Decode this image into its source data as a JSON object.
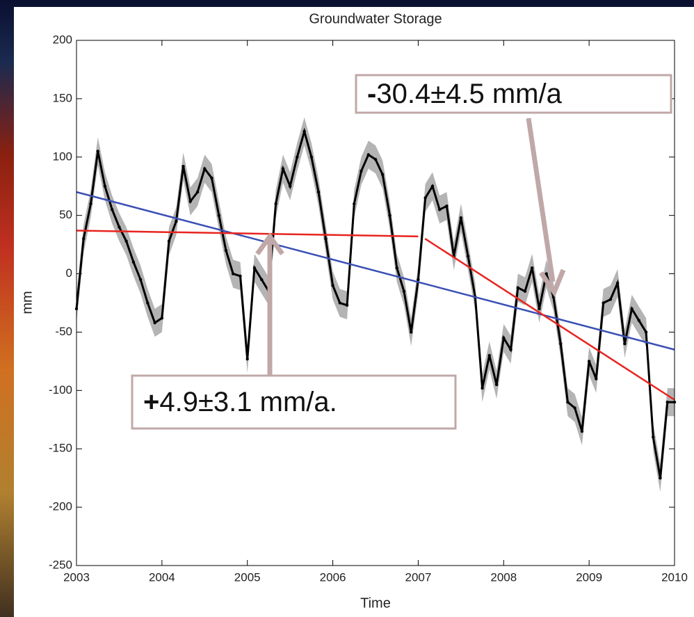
{
  "chart_data": {
    "type": "line",
    "title": "Groundwater Storage",
    "xlabel": "Time",
    "ylabel": "mm",
    "xlim": [
      2003,
      2010
    ],
    "xticks": [
      2003,
      2004,
      2005,
      2006,
      2007,
      2008,
      2009,
      2010
    ],
    "ylim": [
      -250,
      200
    ],
    "yticks": [
      -250,
      -200,
      -150,
      -100,
      -50,
      0,
      50,
      100,
      150,
      200
    ],
    "series": [
      {
        "color": "#000000",
        "band_color": "#b4b4b4",
        "error": 12,
        "x": [
          2003.0,
          2003.083,
          2003.167,
          2003.25,
          2003.333,
          2003.417,
          2003.5,
          2003.583,
          2003.667,
          2003.75,
          2003.833,
          2003.917,
          2004.0,
          2004.083,
          2004.167,
          2004.25,
          2004.333,
          2004.417,
          2004.5,
          2004.583,
          2004.667,
          2004.75,
          2004.833,
          2004.917,
          2005.0,
          2005.083,
          2005.167,
          2005.25,
          2005.333,
          2005.417,
          2005.5,
          2005.583,
          2005.667,
          2005.75,
          2005.833,
          2005.917,
          2006.0,
          2006.083,
          2006.167,
          2006.25,
          2006.333,
          2006.417,
          2006.5,
          2006.583,
          2006.667,
          2006.75,
          2006.833,
          2006.917,
          2007.0,
          2007.083,
          2007.167,
          2007.25,
          2007.333,
          2007.417,
          2007.5,
          2007.583,
          2007.667,
          2007.75,
          2007.833,
          2007.917,
          2008.0,
          2008.083,
          2008.167,
          2008.25,
          2008.333,
          2008.417,
          2008.5,
          2008.583,
          2008.667,
          2008.75,
          2008.833,
          2008.917,
          2009.0,
          2009.083,
          2009.167,
          2009.25,
          2009.333,
          2009.417,
          2009.5,
          2009.583,
          2009.667,
          2009.75,
          2009.833,
          2009.917,
          2010.0
        ],
        "values": [
          -30,
          30,
          60,
          105,
          75,
          55,
          40,
          28,
          10,
          -5,
          -25,
          -42,
          -38,
          28,
          45,
          92,
          62,
          70,
          90,
          82,
          50,
          20,
          0,
          -2,
          -73,
          5,
          -5,
          -15,
          60,
          90,
          75,
          100,
          122,
          100,
          70,
          30,
          -10,
          -25,
          -27,
          60,
          88,
          102,
          98,
          85,
          50,
          5,
          -15,
          -50,
          -5,
          65,
          75,
          55,
          58,
          15,
          48,
          15,
          -20,
          -98,
          -70,
          -95,
          -55,
          -65,
          -12,
          -15,
          5,
          -30,
          0,
          -20,
          -60,
          -110,
          -115,
          -135,
          -75,
          -90,
          -25,
          -22,
          -8,
          -60,
          -30,
          -40,
          -50,
          -140,
          -175,
          -110,
          -110
        ]
      },
      {
        "color": "#3a4fb5",
        "x": [
          2003,
          2010
        ],
        "values": [
          70,
          -65
        ]
      },
      {
        "color": "#e8241e",
        "x": [
          2003,
          2007
        ],
        "values": [
          37,
          32
        ]
      },
      {
        "color": "#e8241e",
        "x": [
          2007.08,
          2010
        ],
        "values": [
          30,
          -108
        ]
      }
    ],
    "annotations": [
      {
        "sign": "-",
        "text": "30.4±4.5 mm/a"
      },
      {
        "sign": "+",
        "text": "4.9±3.1 mm/a."
      }
    ]
  }
}
